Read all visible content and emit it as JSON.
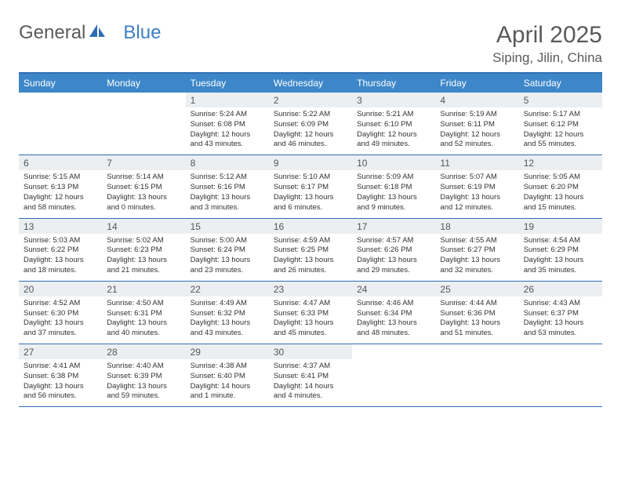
{
  "brand": {
    "part1": "General",
    "part2": "Blue"
  },
  "title": "April 2025",
  "location": "Siping, Jilin, China",
  "colors": {
    "header_bg": "#3d87c9",
    "border": "#2f6db3",
    "daynum_bg": "#eceff1",
    "text": "#333333",
    "title_text": "#5a5a5a"
  },
  "day_headers": [
    "Sunday",
    "Monday",
    "Tuesday",
    "Wednesday",
    "Thursday",
    "Friday",
    "Saturday"
  ],
  "weeks": [
    [
      {
        "n": "",
        "l1": "",
        "l2": "",
        "l3": "",
        "l4": "",
        "empty": true
      },
      {
        "n": "",
        "l1": "",
        "l2": "",
        "l3": "",
        "l4": "",
        "empty": true
      },
      {
        "n": "1",
        "l1": "Sunrise: 5:24 AM",
        "l2": "Sunset: 6:08 PM",
        "l3": "Daylight: 12 hours",
        "l4": "and 43 minutes."
      },
      {
        "n": "2",
        "l1": "Sunrise: 5:22 AM",
        "l2": "Sunset: 6:09 PM",
        "l3": "Daylight: 12 hours",
        "l4": "and 46 minutes."
      },
      {
        "n": "3",
        "l1": "Sunrise: 5:21 AM",
        "l2": "Sunset: 6:10 PM",
        "l3": "Daylight: 12 hours",
        "l4": "and 49 minutes."
      },
      {
        "n": "4",
        "l1": "Sunrise: 5:19 AM",
        "l2": "Sunset: 6:11 PM",
        "l3": "Daylight: 12 hours",
        "l4": "and 52 minutes."
      },
      {
        "n": "5",
        "l1": "Sunrise: 5:17 AM",
        "l2": "Sunset: 6:12 PM",
        "l3": "Daylight: 12 hours",
        "l4": "and 55 minutes."
      }
    ],
    [
      {
        "n": "6",
        "l1": "Sunrise: 5:15 AM",
        "l2": "Sunset: 6:13 PM",
        "l3": "Daylight: 12 hours",
        "l4": "and 58 minutes."
      },
      {
        "n": "7",
        "l1": "Sunrise: 5:14 AM",
        "l2": "Sunset: 6:15 PM",
        "l3": "Daylight: 13 hours",
        "l4": "and 0 minutes."
      },
      {
        "n": "8",
        "l1": "Sunrise: 5:12 AM",
        "l2": "Sunset: 6:16 PM",
        "l3": "Daylight: 13 hours",
        "l4": "and 3 minutes."
      },
      {
        "n": "9",
        "l1": "Sunrise: 5:10 AM",
        "l2": "Sunset: 6:17 PM",
        "l3": "Daylight: 13 hours",
        "l4": "and 6 minutes."
      },
      {
        "n": "10",
        "l1": "Sunrise: 5:09 AM",
        "l2": "Sunset: 6:18 PM",
        "l3": "Daylight: 13 hours",
        "l4": "and 9 minutes."
      },
      {
        "n": "11",
        "l1": "Sunrise: 5:07 AM",
        "l2": "Sunset: 6:19 PM",
        "l3": "Daylight: 13 hours",
        "l4": "and 12 minutes."
      },
      {
        "n": "12",
        "l1": "Sunrise: 5:05 AM",
        "l2": "Sunset: 6:20 PM",
        "l3": "Daylight: 13 hours",
        "l4": "and 15 minutes."
      }
    ],
    [
      {
        "n": "13",
        "l1": "Sunrise: 5:03 AM",
        "l2": "Sunset: 6:22 PM",
        "l3": "Daylight: 13 hours",
        "l4": "and 18 minutes."
      },
      {
        "n": "14",
        "l1": "Sunrise: 5:02 AM",
        "l2": "Sunset: 6:23 PM",
        "l3": "Daylight: 13 hours",
        "l4": "and 21 minutes."
      },
      {
        "n": "15",
        "l1": "Sunrise: 5:00 AM",
        "l2": "Sunset: 6:24 PM",
        "l3": "Daylight: 13 hours",
        "l4": "and 23 minutes."
      },
      {
        "n": "16",
        "l1": "Sunrise: 4:59 AM",
        "l2": "Sunset: 6:25 PM",
        "l3": "Daylight: 13 hours",
        "l4": "and 26 minutes."
      },
      {
        "n": "17",
        "l1": "Sunrise: 4:57 AM",
        "l2": "Sunset: 6:26 PM",
        "l3": "Daylight: 13 hours",
        "l4": "and 29 minutes."
      },
      {
        "n": "18",
        "l1": "Sunrise: 4:55 AM",
        "l2": "Sunset: 6:27 PM",
        "l3": "Daylight: 13 hours",
        "l4": "and 32 minutes."
      },
      {
        "n": "19",
        "l1": "Sunrise: 4:54 AM",
        "l2": "Sunset: 6:29 PM",
        "l3": "Daylight: 13 hours",
        "l4": "and 35 minutes."
      }
    ],
    [
      {
        "n": "20",
        "l1": "Sunrise: 4:52 AM",
        "l2": "Sunset: 6:30 PM",
        "l3": "Daylight: 13 hours",
        "l4": "and 37 minutes."
      },
      {
        "n": "21",
        "l1": "Sunrise: 4:50 AM",
        "l2": "Sunset: 6:31 PM",
        "l3": "Daylight: 13 hours",
        "l4": "and 40 minutes."
      },
      {
        "n": "22",
        "l1": "Sunrise: 4:49 AM",
        "l2": "Sunset: 6:32 PM",
        "l3": "Daylight: 13 hours",
        "l4": "and 43 minutes."
      },
      {
        "n": "23",
        "l1": "Sunrise: 4:47 AM",
        "l2": "Sunset: 6:33 PM",
        "l3": "Daylight: 13 hours",
        "l4": "and 45 minutes."
      },
      {
        "n": "24",
        "l1": "Sunrise: 4:46 AM",
        "l2": "Sunset: 6:34 PM",
        "l3": "Daylight: 13 hours",
        "l4": "and 48 minutes."
      },
      {
        "n": "25",
        "l1": "Sunrise: 4:44 AM",
        "l2": "Sunset: 6:36 PM",
        "l3": "Daylight: 13 hours",
        "l4": "and 51 minutes."
      },
      {
        "n": "26",
        "l1": "Sunrise: 4:43 AM",
        "l2": "Sunset: 6:37 PM",
        "l3": "Daylight: 13 hours",
        "l4": "and 53 minutes."
      }
    ],
    [
      {
        "n": "27",
        "l1": "Sunrise: 4:41 AM",
        "l2": "Sunset: 6:38 PM",
        "l3": "Daylight: 13 hours",
        "l4": "and 56 minutes."
      },
      {
        "n": "28",
        "l1": "Sunrise: 4:40 AM",
        "l2": "Sunset: 6:39 PM",
        "l3": "Daylight: 13 hours",
        "l4": "and 59 minutes."
      },
      {
        "n": "29",
        "l1": "Sunrise: 4:38 AM",
        "l2": "Sunset: 6:40 PM",
        "l3": "Daylight: 14 hours",
        "l4": "and 1 minute."
      },
      {
        "n": "30",
        "l1": "Sunrise: 4:37 AM",
        "l2": "Sunset: 6:41 PM",
        "l3": "Daylight: 14 hours",
        "l4": "and 4 minutes."
      },
      {
        "n": "",
        "l1": "",
        "l2": "",
        "l3": "",
        "l4": "",
        "empty": true
      },
      {
        "n": "",
        "l1": "",
        "l2": "",
        "l3": "",
        "l4": "",
        "empty": true
      },
      {
        "n": "",
        "l1": "",
        "l2": "",
        "l3": "",
        "l4": "",
        "empty": true
      }
    ]
  ]
}
